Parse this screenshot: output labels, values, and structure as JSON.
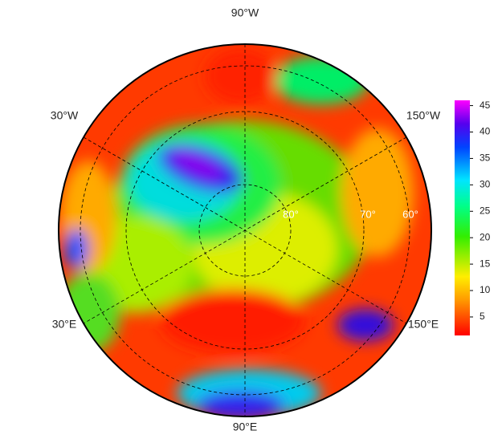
{
  "map": {
    "meridian_labels": [
      "90°W",
      "30°W",
      "150°W",
      "30°E",
      "150°E",
      "90°E"
    ],
    "latitude_labels": [
      "80°",
      "70°",
      "60°"
    ],
    "colorbar": {
      "lim": [
        1.5,
        46
      ],
      "ticks": [
        5,
        10,
        15,
        20,
        25,
        30,
        35,
        40,
        45
      ]
    }
  }
}
